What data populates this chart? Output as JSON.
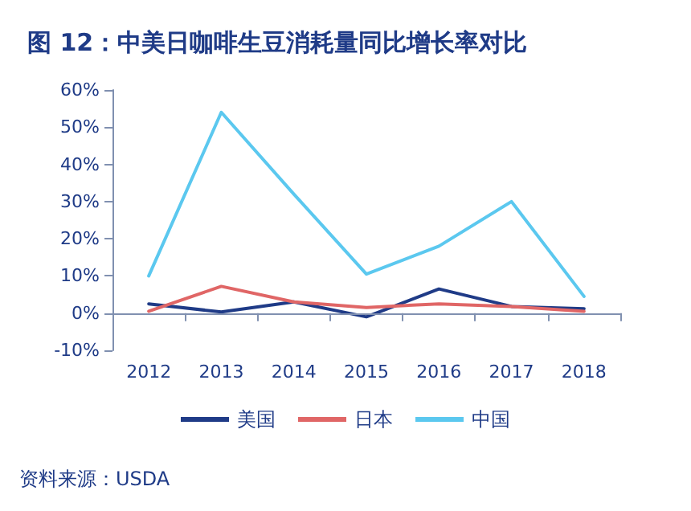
{
  "chart_data": {
    "type": "line",
    "title": "图 12：中美日咖啡生豆消耗量同比增长率对比",
    "categories": [
      "2012",
      "2013",
      "2014",
      "2015",
      "2016",
      "2017",
      "2018"
    ],
    "series": [
      {
        "name": "美国",
        "color": "#1f3b87",
        "values": [
          2.5,
          0.3,
          3,
          -1,
          6.5,
          1.8,
          1.2
        ]
      },
      {
        "name": "日本",
        "color": "#e06666",
        "values": [
          0.5,
          7.2,
          3,
          1.5,
          2.5,
          1.8,
          0.5
        ]
      },
      {
        "name": "中国",
        "color": "#5bc8ef",
        "values": [
          10,
          54,
          32,
          10.5,
          18,
          30,
          4.5
        ]
      }
    ],
    "ylim": [
      -10,
      60
    ],
    "yticks": [
      {
        "value": -10,
        "label": "-10%"
      },
      {
        "value": 0,
        "label": "0%"
      },
      {
        "value": 10,
        "label": "10%"
      },
      {
        "value": 20,
        "label": "20%"
      },
      {
        "value": 30,
        "label": "30%"
      },
      {
        "value": 40,
        "label": "40%"
      },
      {
        "value": 50,
        "label": "50%"
      },
      {
        "value": 60,
        "label": "60%"
      }
    ],
    "ref_lines": [
      {
        "axis": "y",
        "value": 0,
        "color": "#8090b0"
      }
    ],
    "grid": false,
    "legend": "bottom",
    "marker": "none",
    "line_style": "solid",
    "annotations": [
      "资料来源：USDA"
    ]
  }
}
